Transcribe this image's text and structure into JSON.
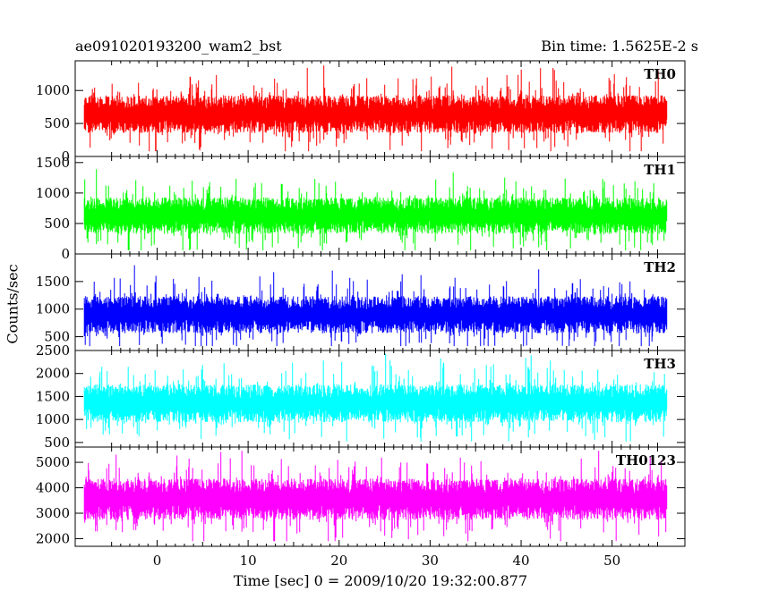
{
  "header": {
    "left_title": "ae091020193200_wam2_bst",
    "right_title": "Bin time: 1.5625E-2 s"
  },
  "chart_data": [
    {
      "type": "line",
      "panel": "TH0",
      "series": [
        {
          "name": "TH0",
          "color": "#ff0000"
        }
      ],
      "xlim": [
        -9,
        58
      ],
      "ylim": [
        0,
        1450
      ],
      "yticks": [
        0,
        500,
        1000
      ],
      "band": {
        "mean": 640,
        "spread": 230,
        "low": 80,
        "high": 1380
      },
      "x_range": [
        -8,
        56
      ]
    },
    {
      "type": "line",
      "panel": "TH1",
      "series": [
        {
          "name": "TH1",
          "color": "#00ff00"
        }
      ],
      "xlim": [
        -9,
        58
      ],
      "ylim": [
        0,
        1600
      ],
      "yticks": [
        0,
        500,
        1000,
        1500
      ],
      "band": {
        "mean": 630,
        "spread": 240,
        "low": 60,
        "high": 1560
      },
      "x_range": [
        -8,
        56
      ]
    },
    {
      "type": "line",
      "panel": "TH2",
      "series": [
        {
          "name": "TH2",
          "color": "#0000ff"
        }
      ],
      "xlim": [
        -9,
        58
      ],
      "ylim": [
        250,
        2000
      ],
      "yticks": [
        500,
        1000,
        1500
      ],
      "band": {
        "mean": 900,
        "spread": 270,
        "low": 330,
        "high": 1950
      },
      "x_range": [
        -8,
        56
      ]
    },
    {
      "type": "line",
      "panel": "TH3",
      "series": [
        {
          "name": "TH3",
          "color": "#00ffff"
        }
      ],
      "xlim": [
        -9,
        58
      ],
      "ylim": [
        400,
        2500
      ],
      "yticks": [
        500,
        1000,
        1500,
        2000,
        2500
      ],
      "band": {
        "mean": 1350,
        "spread": 330,
        "low": 520,
        "high": 2440
      },
      "x_range": [
        -8,
        56
      ]
    },
    {
      "type": "line",
      "panel": "TH0123",
      "series": [
        {
          "name": "TH0123",
          "color": "#ff00ff"
        }
      ],
      "xlim": [
        -9,
        58
      ],
      "ylim": [
        1700,
        5600
      ],
      "yticks": [
        2000,
        3000,
        4000,
        5000
      ],
      "band": {
        "mean": 3550,
        "spread": 650,
        "low": 1900,
        "high": 5450
      },
      "x_range": [
        -8,
        56
      ]
    }
  ],
  "x_axis": {
    "label": "Time [sec] 0 = 2009/10/20 19:32:00.877",
    "ticks": [
      0,
      10,
      20,
      30,
      40,
      50
    ]
  },
  "y_axis": {
    "label": "Counts/sec"
  }
}
